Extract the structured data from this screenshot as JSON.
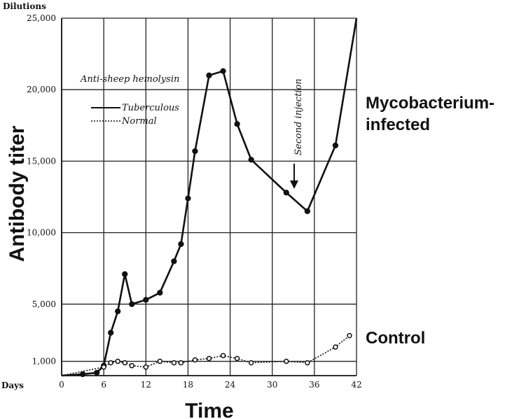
{
  "chart_data": {
    "type": "line",
    "xlabel": "Time",
    "ylabel": "Antibody titer",
    "y_unit": "Dilutions",
    "x_unit": "Days",
    "xlim": [
      0,
      42
    ],
    "ylim": [
      0,
      25000
    ],
    "x_ticks": [
      "0",
      "6",
      "12",
      "18",
      "24",
      "30",
      "36",
      "42"
    ],
    "y_ticks": [
      "1,000",
      "5,000",
      "10,000",
      "15,000",
      "20,000",
      "25,000"
    ],
    "y_tick_values": [
      1000,
      5000,
      10000,
      15000,
      20000,
      25000
    ],
    "x_tick_values": [
      0,
      6,
      12,
      18,
      24,
      30,
      36,
      42
    ],
    "grid": true,
    "legend_title": "Anti-sheep hemolysin",
    "legend_position": "upper-left",
    "series": [
      {
        "name": "Tuberculous",
        "line_style": "solid",
        "x": [
          0,
          3,
          5,
          6,
          7,
          8,
          9,
          10,
          12,
          14,
          16,
          17,
          18,
          19,
          21,
          23,
          25,
          27,
          32,
          35,
          39,
          42
        ],
        "y": [
          0,
          100,
          200,
          700,
          3000,
          4500,
          7100,
          5000,
          5300,
          5800,
          8000,
          9200,
          12400,
          15700,
          21000,
          21300,
          17600,
          15100,
          12800,
          11500,
          16100,
          25000
        ]
      },
      {
        "name": "Normal",
        "line_style": "dashed",
        "x": [
          0,
          6,
          7,
          8,
          9,
          10,
          12,
          14,
          16,
          17,
          19,
          21,
          23,
          25,
          27,
          32,
          35,
          39,
          41
        ],
        "y": [
          0,
          600,
          900,
          1000,
          900,
          700,
          600,
          1000,
          900,
          900,
          1100,
          1200,
          1400,
          1200,
          900,
          1000,
          900,
          2000,
          2800
        ]
      }
    ],
    "annotations": {
      "injection": "Second injection",
      "injection_x": 33,
      "group_infected": "Mycobacterium-\ninfected",
      "group_control": "Control"
    }
  }
}
